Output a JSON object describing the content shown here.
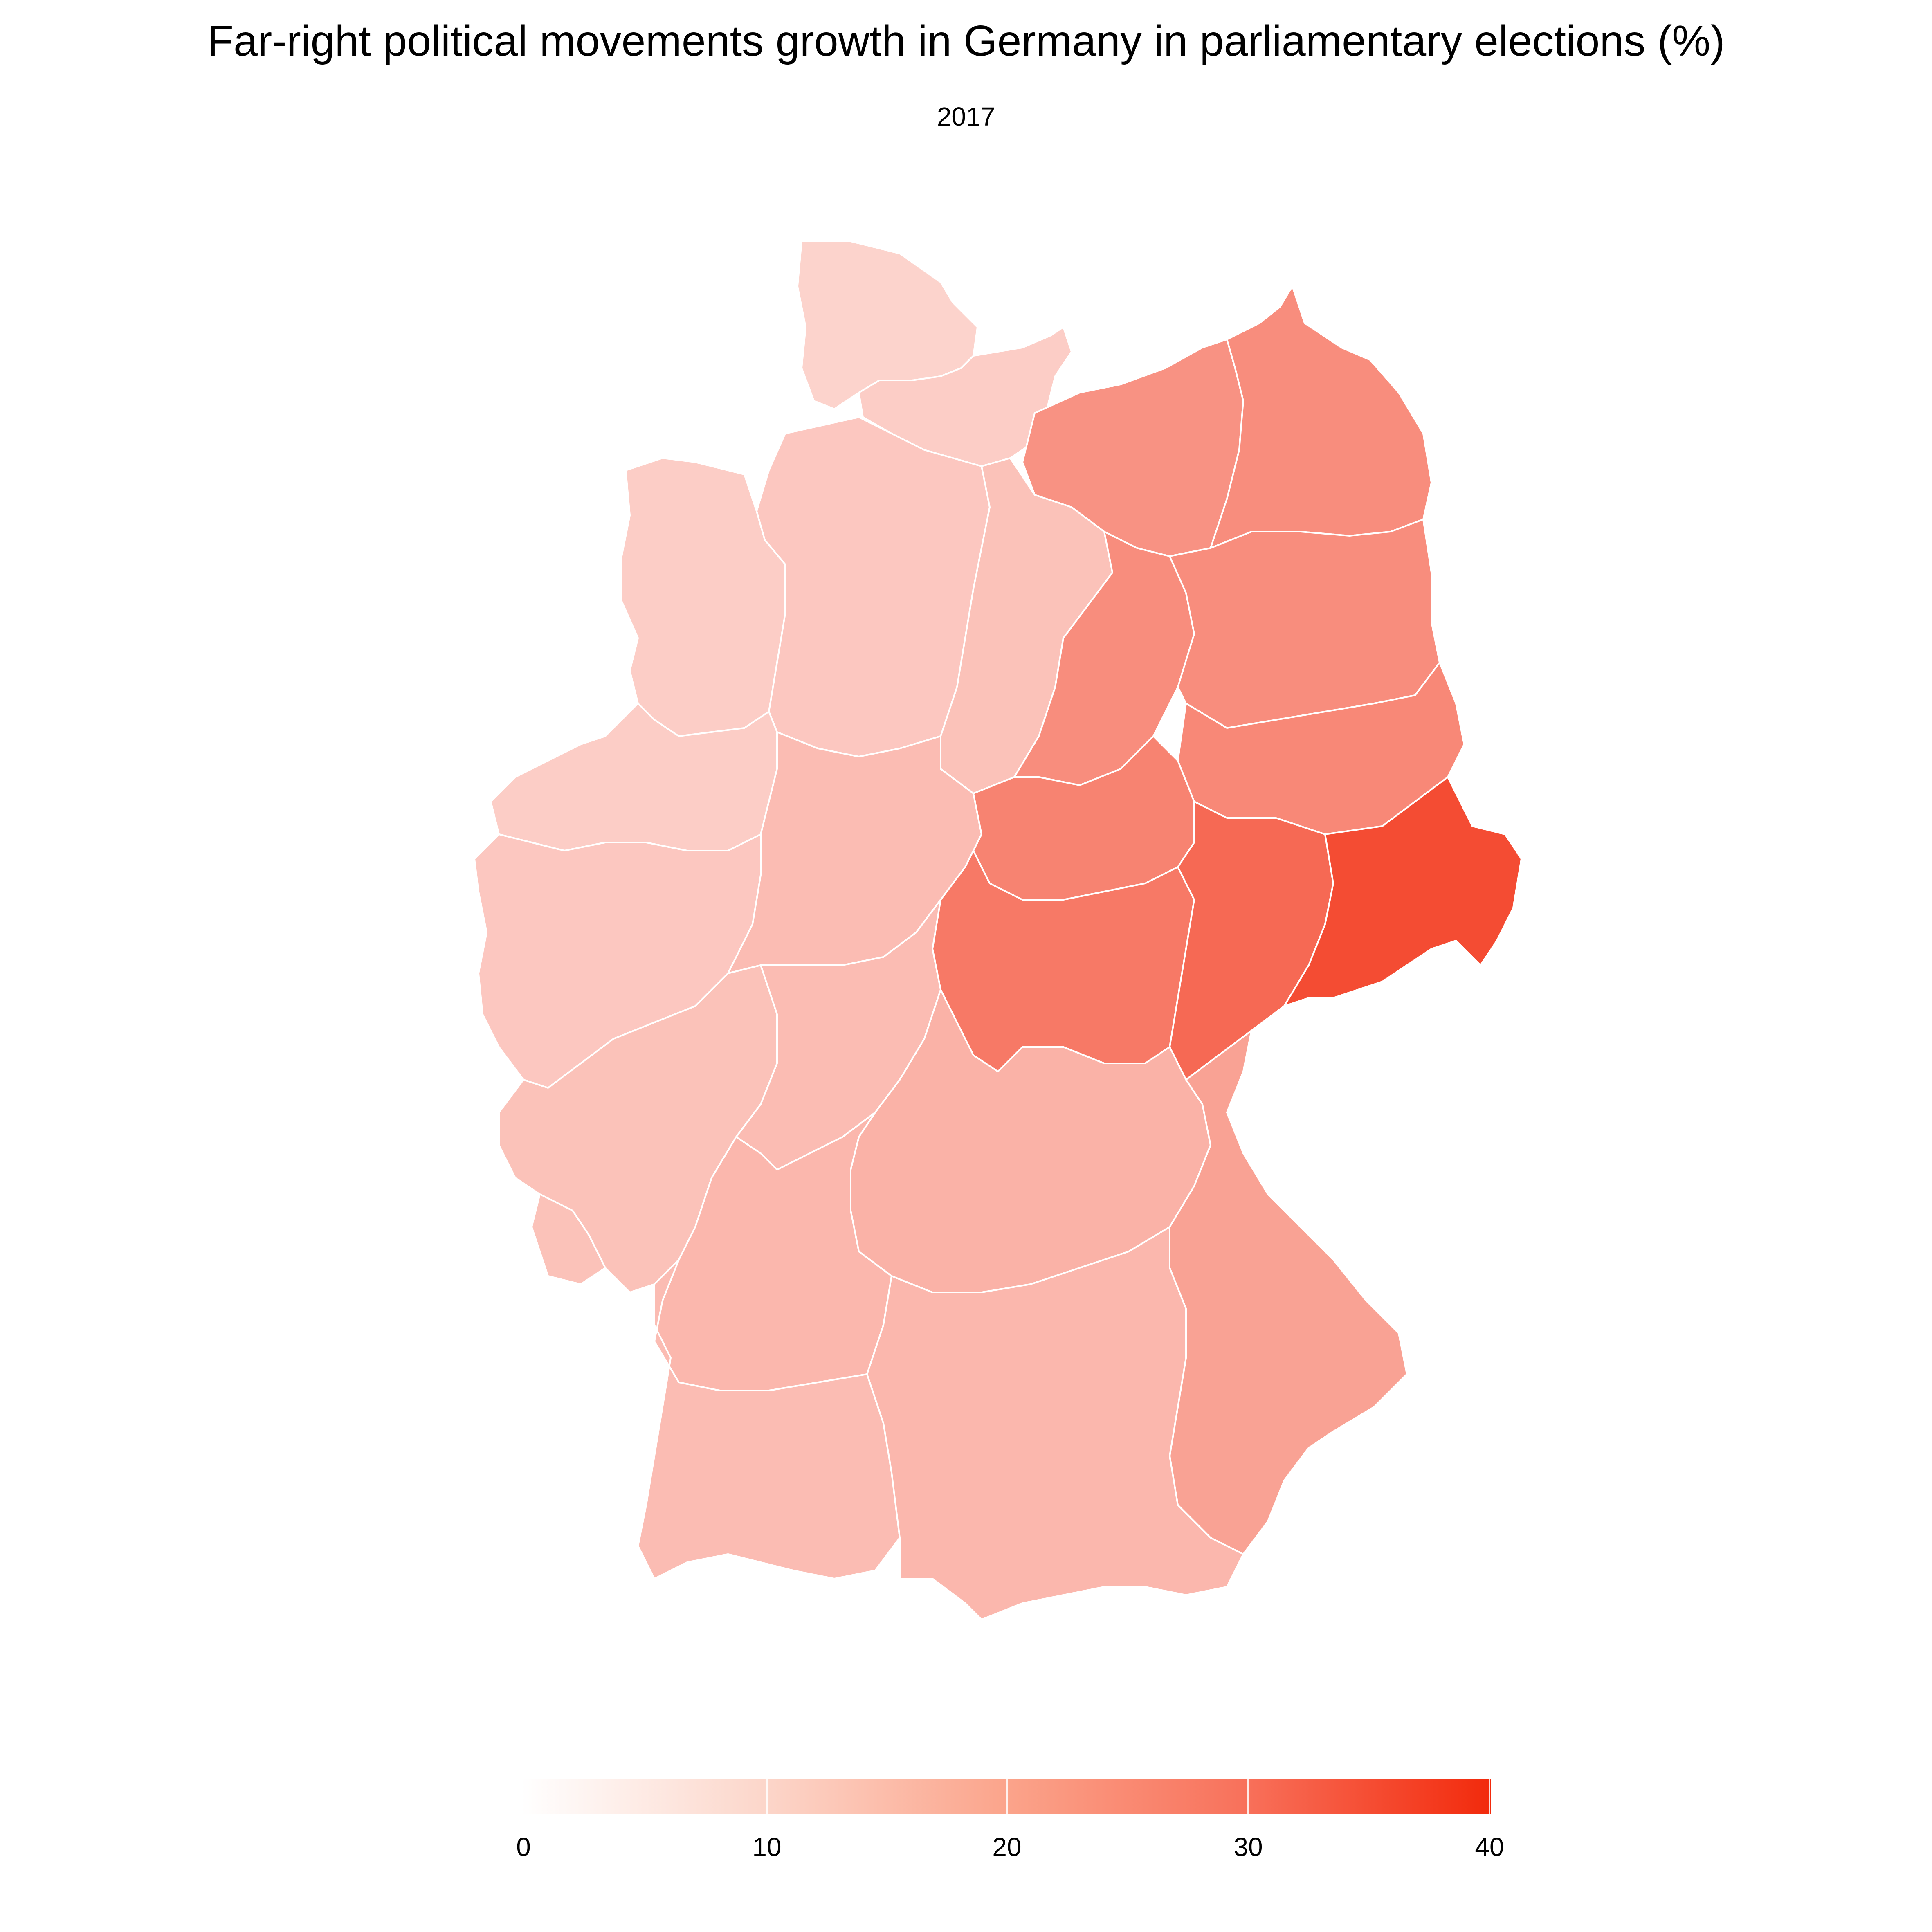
{
  "title": "Far-right political movements growth in Germany in parliamentary elections (%)",
  "subtitle": "2017",
  "map": {
    "region": "Germany",
    "unit": "%",
    "scale_min": 0,
    "scale_max": 40,
    "color_low": "#ffffff",
    "color_high": "#f22a0c",
    "border_color": "#ffffff",
    "zones": [
      {
        "id": "schleswig-holstein-north",
        "value": 7
      },
      {
        "id": "schleswig-holstein-south",
        "value": 8
      },
      {
        "id": "mecklenburg-west",
        "value": 19
      },
      {
        "id": "mecklenburg-east",
        "value": 20
      },
      {
        "id": "lower-saxony-northwest",
        "value": 8
      },
      {
        "id": "lower-saxony-central",
        "value": 9
      },
      {
        "id": "lower-saxony-east",
        "value": 10
      },
      {
        "id": "saxony-anhalt-north",
        "value": 20
      },
      {
        "id": "brandenburg-north",
        "value": 20
      },
      {
        "id": "brandenburg-south",
        "value": 21
      },
      {
        "id": "north-rhine-westphalia-north",
        "value": 8
      },
      {
        "id": "north-rhine-westphalia-south",
        "value": 9
      },
      {
        "id": "hesse-north",
        "value": 11
      },
      {
        "id": "saxony-anhalt-south",
        "value": 22
      },
      {
        "id": "thuringia",
        "value": 24
      },
      {
        "id": "saxony-west",
        "value": 27
      },
      {
        "id": "saxony-east",
        "value": 33
      },
      {
        "id": "rhineland-palatinate",
        "value": 10
      },
      {
        "id": "hesse-south",
        "value": 11
      },
      {
        "id": "saarland",
        "value": 10
      },
      {
        "id": "bavaria-north",
        "value": 13
      },
      {
        "id": "bavaria-east",
        "value": 16
      },
      {
        "id": "baden-wurttemberg-north",
        "value": 12
      },
      {
        "id": "baden-wurttemberg-south",
        "value": 11
      },
      {
        "id": "bavaria-south",
        "value": 12
      }
    ]
  },
  "legend": {
    "ticks": [
      "0",
      "10",
      "20",
      "30",
      "40"
    ]
  }
}
